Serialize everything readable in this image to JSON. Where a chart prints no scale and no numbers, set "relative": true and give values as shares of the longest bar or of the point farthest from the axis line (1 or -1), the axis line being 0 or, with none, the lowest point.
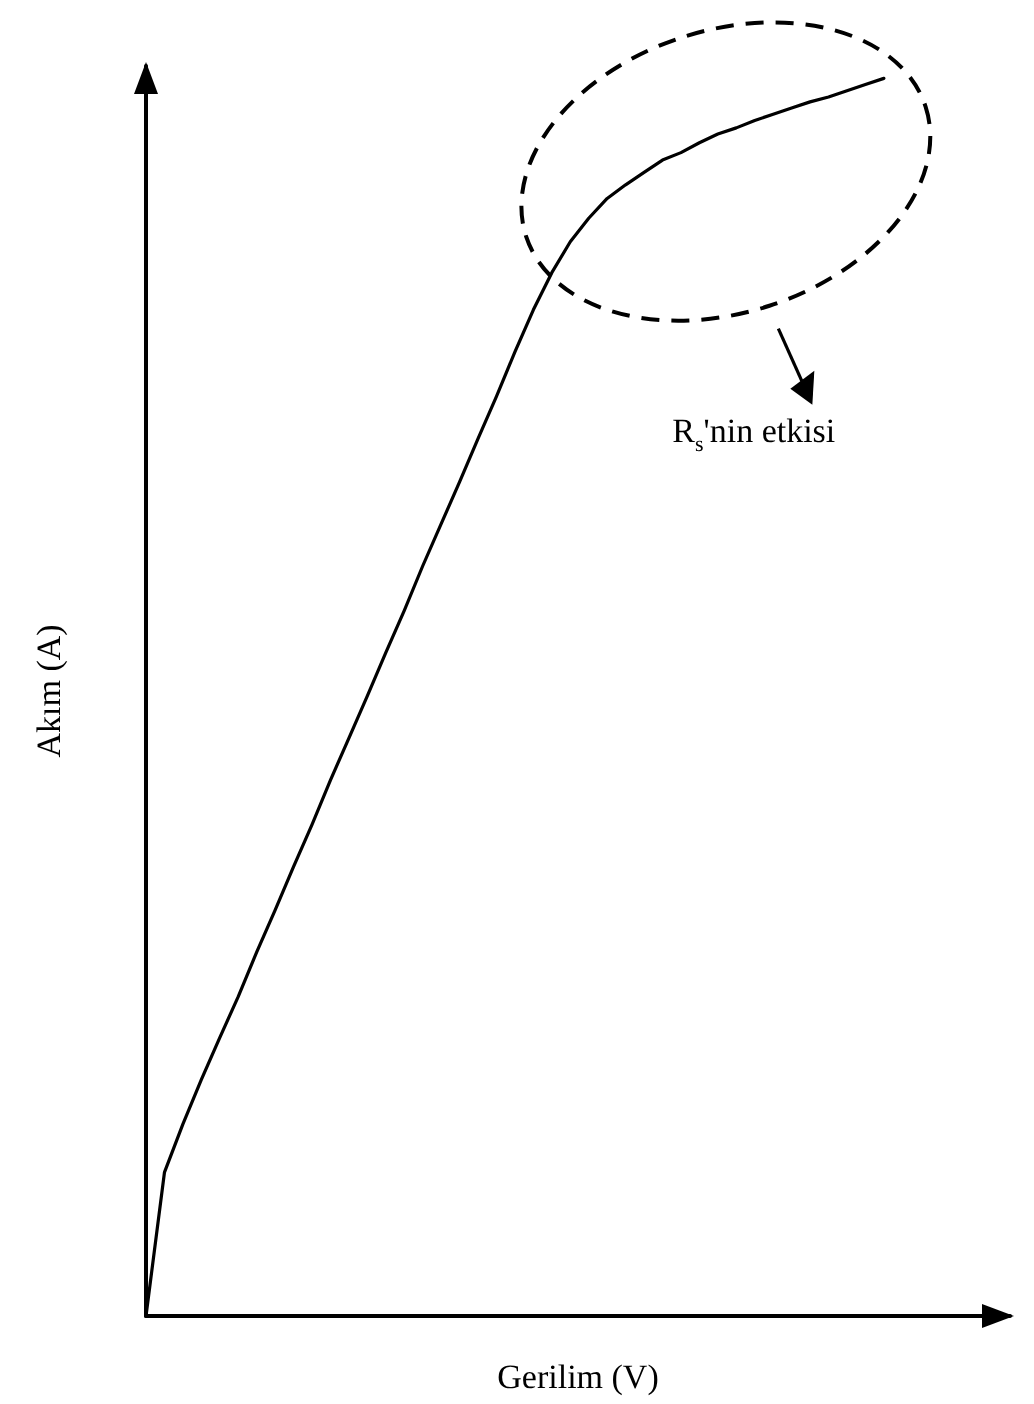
{
  "chart_data": {
    "type": "line",
    "relative": true,
    "xlabel": "Gerilim (V)",
    "ylabel": "Akım (A)",
    "annotations": [
      "R$_{s}$'nin etkisi"
    ],
    "categories": [
      null,
      null,
      null,
      null,
      null,
      null,
      null,
      null,
      null,
      null,
      null,
      null,
      null,
      null,
      null,
      null,
      null,
      null,
      null,
      null,
      null,
      null,
      null,
      null,
      null,
      null,
      null,
      null,
      null,
      null,
      null,
      null,
      null,
      null,
      null,
      null,
      null,
      null,
      null,
      null,
      null
    ],
    "series": [
      {
        "color": "#000000",
        "values": [
          0,
          0.116,
          0.155,
          0.191,
          0.225,
          0.258,
          0.294,
          0.328,
          0.363,
          0.397,
          0.433,
          0.467,
          0.501,
          0.536,
          0.57,
          0.606,
          0.64,
          0.674,
          0.709,
          0.743,
          0.779,
          0.813,
          0.843,
          0.868,
          0.887,
          0.903,
          0.914,
          0.924,
          0.934,
          0.94,
          0.948,
          0.955,
          0.96,
          0.966,
          0.971,
          0.976,
          0.981,
          0.985,
          0.99,
          0.995,
          1
        ]
      }
    ],
    "marker": "none",
    "line_style": "solid"
  }
}
